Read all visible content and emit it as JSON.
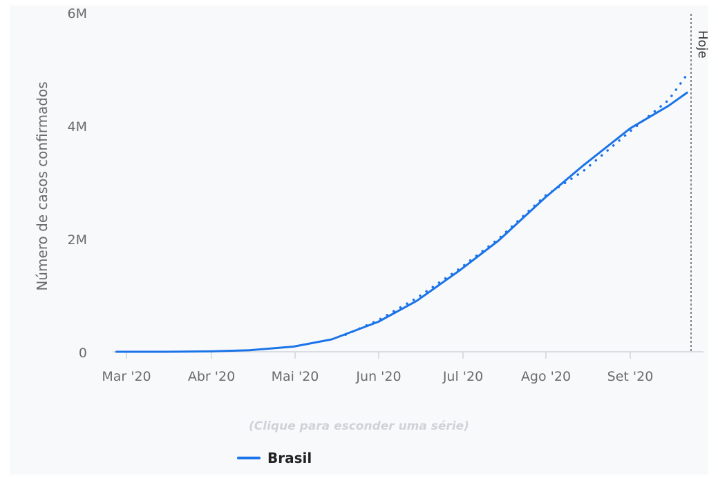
{
  "chart_data": {
    "type": "line",
    "title": "",
    "xlabel": "",
    "ylabel": "Número de casos confirmados",
    "x_tick_labels": [
      "Mar '20",
      "Abr '20",
      "Mai '20",
      "Jun '20",
      "Jul '20",
      "Ago '20",
      "Set '20"
    ],
    "y_tick_labels": [
      "0",
      "2M",
      "4M",
      "6M"
    ],
    "ylim": [
      0,
      6000000
    ],
    "today_marker": "Hoje",
    "grid": false,
    "legend_position": "bottom",
    "series": [
      {
        "name": "Brasil",
        "color": "#1a73e8",
        "style": "solid",
        "points": [
          [
            "2020-02-26",
            0
          ],
          [
            "2020-03-15",
            200
          ],
          [
            "2020-04-01",
            6800
          ],
          [
            "2020-04-15",
            28000
          ],
          [
            "2020-05-01",
            92000
          ],
          [
            "2020-05-15",
            220000
          ],
          [
            "2020-06-01",
            530000
          ],
          [
            "2020-06-15",
            900000
          ],
          [
            "2020-07-01",
            1450000
          ],
          [
            "2020-07-15",
            1970000
          ],
          [
            "2020-08-01",
            2730000
          ],
          [
            "2020-08-15",
            3300000
          ],
          [
            "2020-09-01",
            3950000
          ],
          [
            "2020-09-15",
            4350000
          ],
          [
            "2020-09-22",
            4590000
          ]
        ]
      },
      {
        "name": "",
        "color": "#1a73e8",
        "style": "dotted",
        "points": [
          [
            "2020-05-20",
            300000
          ],
          [
            "2020-06-01",
            560000
          ],
          [
            "2020-06-15",
            950000
          ],
          [
            "2020-07-01",
            1480000
          ],
          [
            "2020-07-15",
            2000000
          ],
          [
            "2020-08-01",
            2760000
          ],
          [
            "2020-08-15",
            3200000
          ],
          [
            "2020-09-01",
            3900000
          ],
          [
            "2020-09-15",
            4450000
          ],
          [
            "2020-09-22",
            4920000
          ]
        ]
      }
    ]
  },
  "hint_text": "(Clique para esconder uma série)",
  "legend": {
    "label": "Brasil",
    "color": "#1a73e8"
  }
}
